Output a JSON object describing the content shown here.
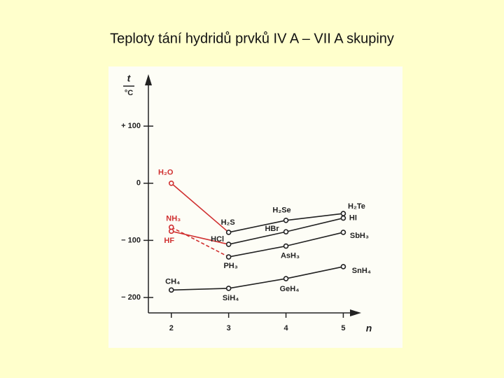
{
  "chart_data": {
    "type": "line",
    "title": "Teploty tání hydridů prvků IV A – VII A skupiny",
    "y_label_top": "t",
    "y_label_bottom": "°C",
    "x_label": "n",
    "x": [
      2,
      3,
      4,
      5
    ],
    "xlim": [
      1.6,
      5.3
    ],
    "xticks": [
      2,
      3,
      4,
      5
    ],
    "ylim": [
      -227,
      186
    ],
    "yticks": [
      {
        "value": 100,
        "label": "+ 100"
      },
      0,
      {
        "value": -100,
        "label": "− 100"
      },
      {
        "value": -200,
        "label": "− 200"
      }
    ],
    "color": "#222222",
    "series": [
      {
        "labels": [
          "H₂O",
          "H₂S",
          "H₂Se",
          "H₂Te"
        ],
        "values": [
          0,
          -86,
          -65,
          -53
        ],
        "link_color": "#d03030",
        "link_dashed": false
      },
      {
        "labels": [
          "HF",
          "HCl",
          "HBr",
          "HI"
        ],
        "values": [
          -84,
          -107,
          -85,
          -61
        ],
        "link_color": "#d03030",
        "link_dashed": false
      },
      {
        "labels": [
          "NH₃",
          "PH₃",
          "AsH₃",
          "SbH₃"
        ],
        "values": [
          -77,
          -129,
          -110,
          -86
        ],
        "link_color": "#d03030",
        "link_dashed": true
      },
      {
        "labels": [
          "CH₄",
          "SiH₄",
          "GeH₄",
          "SnH₄"
        ],
        "values": [
          -187,
          -184,
          -167,
          -146
        ]
      }
    ]
  }
}
